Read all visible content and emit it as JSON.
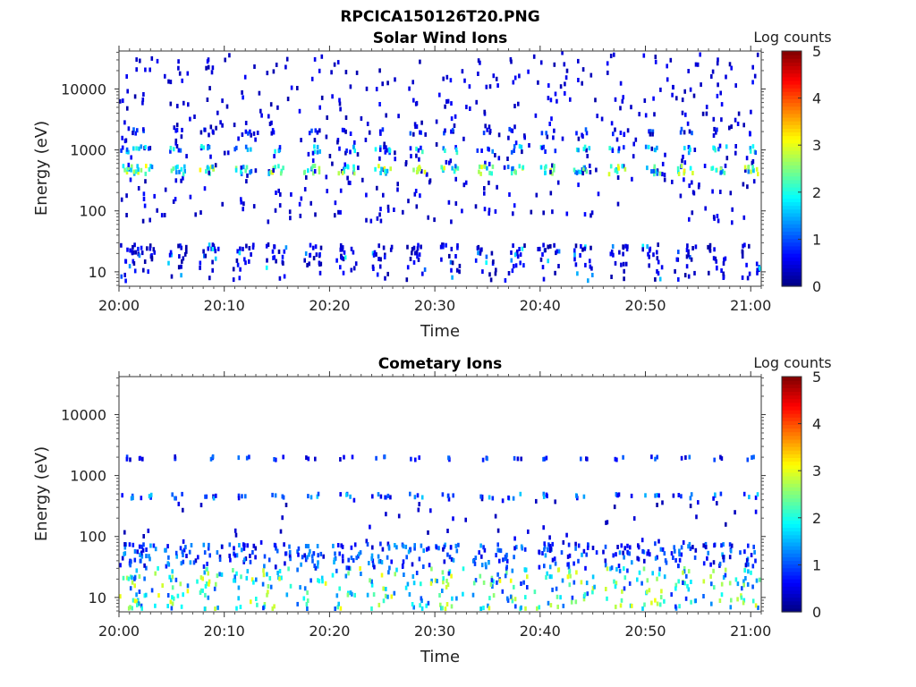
{
  "figure_title": "RPCICA150126T20.PNG",
  "chart_data": [
    {
      "type": "heatmap",
      "title": "Solar Wind Ions",
      "xlabel": "Time",
      "ylabel": "Energy (eV)",
      "x_ticks": [
        "20:00",
        "20:10",
        "20:20",
        "20:30",
        "20:40",
        "20:50",
        "21:00"
      ],
      "x_range_minutes": [
        0,
        61
      ],
      "y_scale": "log",
      "y_ticks": [
        10,
        100,
        1000,
        10000
      ],
      "y_tick_labels": [
        "10",
        "100",
        "1000",
        "10000"
      ],
      "ylim": [
        5.8,
        42000
      ],
      "colorbar": {
        "label": "Log counts",
        "range": [
          0,
          5
        ],
        "ticks": [
          "0",
          "1",
          "2",
          "3",
          "4",
          "5"
        ],
        "colormap": "jet"
      },
      "sweep_times_min": [
        0.8,
        2.3,
        5.4,
        8.4,
        11.7,
        14.9,
        18.2,
        21.5,
        24.9,
        28.2,
        31.3,
        34.7,
        37.5,
        40.7,
        43.9,
        47.2,
        50.5,
        53.7,
        56.8,
        59.9
      ],
      "features": [
        {
          "name": "high-energy band",
          "energy_eV": 450,
          "peak_log_counts": 3.0
        },
        {
          "name": "secondary band",
          "energy_eV": 1000,
          "peak_log_counts": 2.2
        },
        {
          "name": "low-energy band",
          "energy_range_eV": [
            6,
            28
          ],
          "peak_log_counts": 2.0
        }
      ],
      "grid": false
    },
    {
      "type": "heatmap",
      "title": "Cometary Ions",
      "xlabel": "Time",
      "ylabel": "Energy (eV)",
      "x_ticks": [
        "20:00",
        "20:10",
        "20:20",
        "20:30",
        "20:40",
        "20:50",
        "21:00"
      ],
      "x_range_minutes": [
        0,
        61
      ],
      "y_scale": "log",
      "y_ticks": [
        10,
        100,
        1000,
        10000
      ],
      "y_tick_labels": [
        "10",
        "100",
        "1000",
        "10000"
      ],
      "ylim": [
        5.8,
        42000
      ],
      "colorbar": {
        "label": "Log counts",
        "range": [
          0,
          5
        ],
        "ticks": [
          "0",
          "1",
          "2",
          "3",
          "4",
          "5"
        ],
        "colormap": "jet"
      },
      "sweep_times_min": [
        0.8,
        2.3,
        5.4,
        8.4,
        11.7,
        14.9,
        18.2,
        21.5,
        24.9,
        28.2,
        31.3,
        34.7,
        37.5,
        40.7,
        43.9,
        47.2,
        50.5,
        53.7,
        56.8,
        59.9
      ],
      "features": [
        {
          "name": "cometary ion band",
          "energy_range_eV": [
            6,
            80
          ],
          "peak_log_counts": 3.0
        },
        {
          "name": "mid-energy band",
          "energy_eV": 450,
          "peak_log_counts": 1.5
        },
        {
          "name": "high-energy band",
          "energy_eV": 1900,
          "peak_log_counts": 1.0
        }
      ],
      "grid": false
    }
  ]
}
